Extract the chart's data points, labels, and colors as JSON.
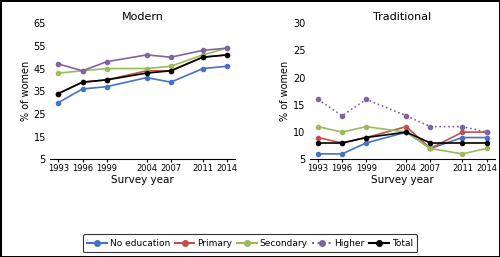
{
  "years": [
    1993,
    1996,
    1999,
    2004,
    2007,
    2011,
    2014
  ],
  "modern": {
    "no_education": [
      30,
      36,
      37,
      41,
      39,
      45,
      46
    ],
    "primary": [
      34,
      39,
      40,
      44,
      44,
      50,
      51
    ],
    "secondary": [
      43,
      44,
      45,
      45,
      46,
      51,
      54
    ],
    "higher": [
      47,
      44,
      48,
      51,
      50,
      53,
      54
    ],
    "total": [
      34,
      39,
      40,
      43,
      44,
      50,
      51
    ]
  },
  "traditional": {
    "no_education": [
      6,
      6,
      8,
      10,
      7,
      9,
      9
    ],
    "primary": [
      9,
      8,
      9,
      11,
      7,
      10,
      10
    ],
    "secondary": [
      11,
      10,
      11,
      10,
      7,
      6,
      7
    ],
    "higher": [
      16,
      13,
      16,
      13,
      11,
      11,
      10
    ],
    "total": [
      8,
      8,
      9,
      10,
      8,
      8,
      8
    ]
  },
  "colors": {
    "no_education": "#4472C4",
    "primary": "#C0504D",
    "secondary": "#9BBB59",
    "higher": "#8064A2",
    "total": "#000000"
  },
  "modern_ylim": [
    5,
    65
  ],
  "modern_yticks": [
    5,
    15,
    25,
    35,
    45,
    55,
    65
  ],
  "trad_ylim": [
    5,
    30
  ],
  "trad_yticks": [
    5,
    10,
    15,
    20,
    25,
    30
  ],
  "modern_title": "Modern",
  "trad_title": "Traditional",
  "ylabel": "% of women",
  "xlabel": "Survey year",
  "legend_labels": [
    "No education",
    "Primary",
    "Secondary",
    "Higher",
    "Total"
  ]
}
